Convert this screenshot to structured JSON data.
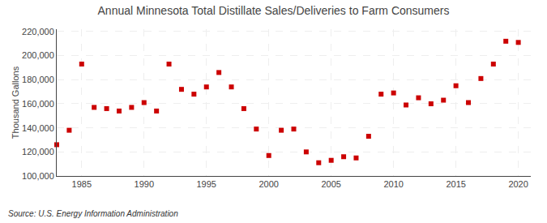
{
  "chart_data": {
    "type": "scatter",
    "title": "Annual Minnesota Total Distillate Sales/Deliveries to Farm Consumers",
    "ylabel": "Thousand Gallons",
    "annotations": [
      "Source: U.S. Energy Information Administration"
    ],
    "x": [
      1983,
      1984,
      1985,
      1986,
      1987,
      1988,
      1989,
      1990,
      1991,
      1992,
      1993,
      1994,
      1995,
      1996,
      1997,
      1998,
      1999,
      2000,
      2001,
      2002,
      2003,
      2004,
      2005,
      2006,
      2007,
      2008,
      2009,
      2010,
      2011,
      2012,
      2013,
      2014,
      2015,
      2016,
      2017,
      2018,
      2019,
      2020
    ],
    "values": [
      126000,
      138000,
      193000,
      157000,
      156000,
      154000,
      157000,
      161000,
      154000,
      193000,
      172000,
      168000,
      174000,
      186000,
      174000,
      156000,
      139000,
      117000,
      138000,
      139000,
      120000,
      111000,
      113000,
      116000,
      115000,
      133000,
      168000,
      169000,
      159000,
      165000,
      160000,
      163000,
      175000,
      161000,
      181000,
      193000,
      212000,
      211000
    ],
    "color": "#cc0000",
    "marker": "square",
    "xlim": [
      1983,
      2021
    ],
    "xticks": [
      1985,
      1990,
      1995,
      2000,
      2005,
      2010,
      2015,
      2020
    ],
    "ylim": [
      100000,
      222000
    ],
    "yticks": [
      {
        "value": 100000,
        "label": "100,000"
      },
      {
        "value": 120000,
        "label": "120,000"
      },
      {
        "value": 140000,
        "label": "140,000"
      },
      {
        "value": 160000,
        "label": "160,000"
      },
      {
        "value": 180000,
        "label": "180,000"
      },
      {
        "value": 200000,
        "label": "200,000"
      },
      {
        "value": 220000,
        "label": "220,000"
      }
    ],
    "grid": true
  }
}
